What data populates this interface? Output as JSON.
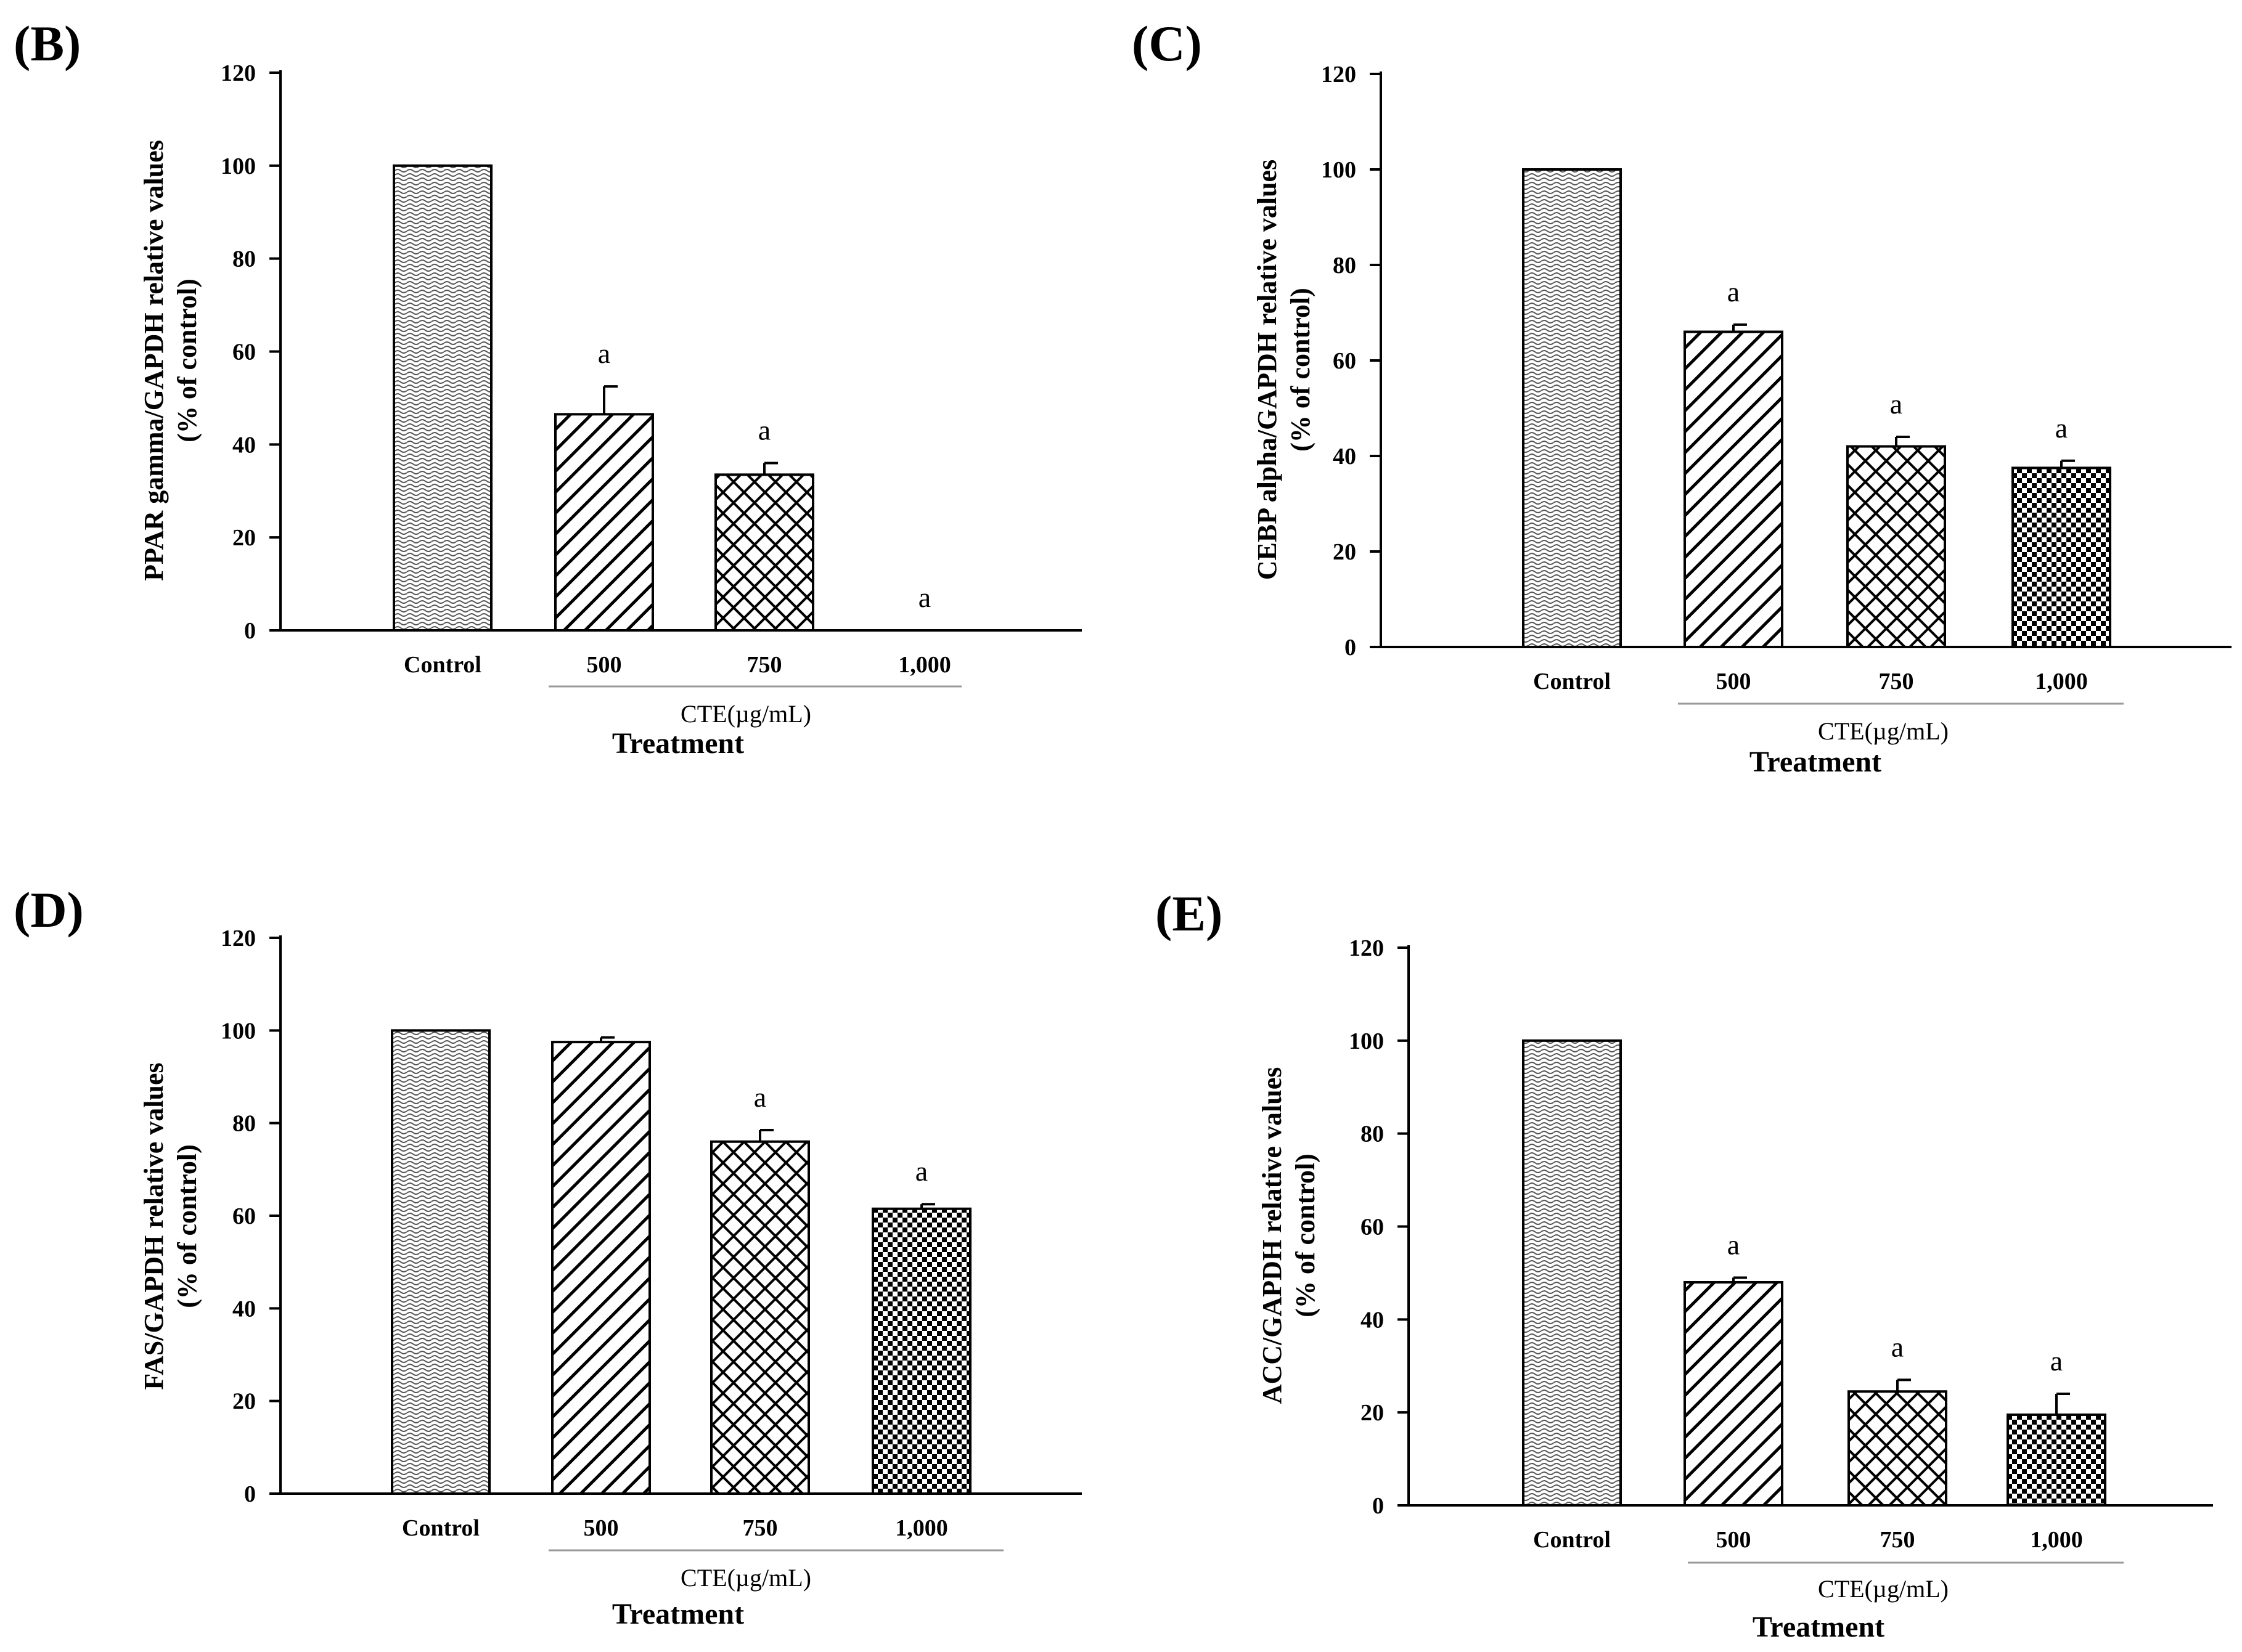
{
  "figure": {
    "group_label": "CTE(µg/mL)",
    "xlabel": "Treatment"
  },
  "chart_data": [
    {
      "panel": "B",
      "type": "bar",
      "title": "",
      "categories": [
        "Control",
        "500",
        "750",
        "1,000"
      ],
      "values": [
        100,
        46.5,
        33.5,
        0
      ],
      "errors": [
        0,
        6,
        2.5,
        0
      ],
      "annotations": [
        "",
        "a",
        "a",
        "a"
      ],
      "patterns": [
        "waves",
        "diag",
        "cross",
        "checker"
      ],
      "ylabel_line1": "PPAR gamma/GAPDH relative values",
      "ylabel_line2": "(% of control)",
      "ylim": [
        0,
        120
      ],
      "yticks": [
        0,
        20,
        40,
        60,
        80,
        100,
        120
      ],
      "xlabel": "Treatment",
      "group_label": "CTE(µg/mL)"
    },
    {
      "panel": "C",
      "type": "bar",
      "title": "",
      "categories": [
        "Control",
        "500",
        "750",
        "1,000"
      ],
      "values": [
        100,
        66,
        42,
        37.5
      ],
      "errors": [
        0,
        1.5,
        2,
        1.5
      ],
      "annotations": [
        "",
        "a",
        "a",
        "a"
      ],
      "patterns": [
        "waves",
        "diag",
        "cross",
        "checker"
      ],
      "ylabel_line1": "CEBP alpha/GAPDH relative values",
      "ylabel_line2": "(% of control)",
      "ylim": [
        0,
        120
      ],
      "yticks": [
        0,
        20,
        40,
        60,
        80,
        100,
        120
      ],
      "xlabel": "Treatment",
      "group_label": "CTE(µg/mL)"
    },
    {
      "panel": "D",
      "type": "bar",
      "title": "",
      "categories": [
        "Control",
        "500",
        "750",
        "1,000"
      ],
      "values": [
        100,
        97.5,
        76,
        61.5
      ],
      "errors": [
        0,
        1,
        2.5,
        1
      ],
      "annotations": [
        "",
        "",
        "a",
        "a"
      ],
      "patterns": [
        "waves",
        "diag",
        "cross",
        "checker"
      ],
      "ylabel_line1": "FAS/GAPDH relative values",
      "ylabel_line2": "(% of control)",
      "ylim": [
        0,
        120
      ],
      "yticks": [
        0,
        20,
        40,
        60,
        80,
        100,
        120
      ],
      "xlabel": "Treatment",
      "group_label": "CTE(µg/mL)"
    },
    {
      "panel": "E",
      "type": "bar",
      "title": "",
      "categories": [
        "Control",
        "500",
        "750",
        "1,000"
      ],
      "values": [
        100,
        48,
        24.5,
        19.5
      ],
      "errors": [
        0,
        1,
        2.5,
        4.5
      ],
      "annotations": [
        "",
        "a",
        "a",
        "a"
      ],
      "patterns": [
        "waves",
        "diag",
        "cross",
        "checker"
      ],
      "ylabel_line1": "ACC/GAPDH relative values",
      "ylabel_line2": "(% of control)",
      "ylim": [
        0,
        120
      ],
      "yticks": [
        0,
        20,
        40,
        60,
        80,
        100,
        120
      ],
      "xlabel": "Treatment",
      "group_label": "CTE(µg/mL)"
    }
  ]
}
